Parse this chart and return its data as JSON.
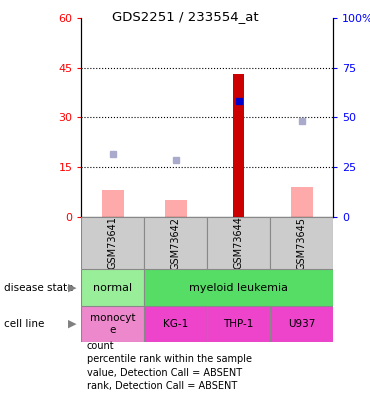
{
  "title": "GDS2251 / 233554_at",
  "samples": [
    "GSM73641",
    "GSM73642",
    "GSM73644",
    "GSM73645"
  ],
  "count_values": [
    null,
    null,
    43,
    null
  ],
  "percentile_rank_values": [
    null,
    null,
    35,
    null
  ],
  "value_absent": [
    8,
    5,
    null,
    9
  ],
  "rank_absent": [
    19,
    17,
    null,
    29
  ],
  "ylim_left": [
    0,
    60
  ],
  "ylim_right": [
    0,
    100
  ],
  "yticks_left": [
    0,
    15,
    30,
    45,
    60
  ],
  "ytick_labels_left": [
    "0",
    "15",
    "30",
    "45",
    "60"
  ],
  "yticks_right": [
    0,
    25,
    50,
    75,
    100
  ],
  "ytick_labels_right": [
    "0",
    "25",
    "50",
    "75",
    "100%"
  ],
  "color_count": "#cc0000",
  "color_percentile": "#0000cc",
  "color_value_absent": "#ffaaaa",
  "color_rank_absent": "#aaaacc",
  "color_normal_bg": "#99ee99",
  "color_myeloid_bg": "#55dd66",
  "color_cell_monocyte": "#ee88cc",
  "color_cell_other": "#ee44cc",
  "color_sample_bg": "#cccccc",
  "bar_width": 0.35,
  "legend_items": [
    [
      "#cc0000",
      "count"
    ],
    [
      "#0000cc",
      "percentile rank within the sample"
    ],
    [
      "#ffaaaa",
      "value, Detection Call = ABSENT"
    ],
    [
      "#aaaacc",
      "rank, Detection Call = ABSENT"
    ]
  ]
}
